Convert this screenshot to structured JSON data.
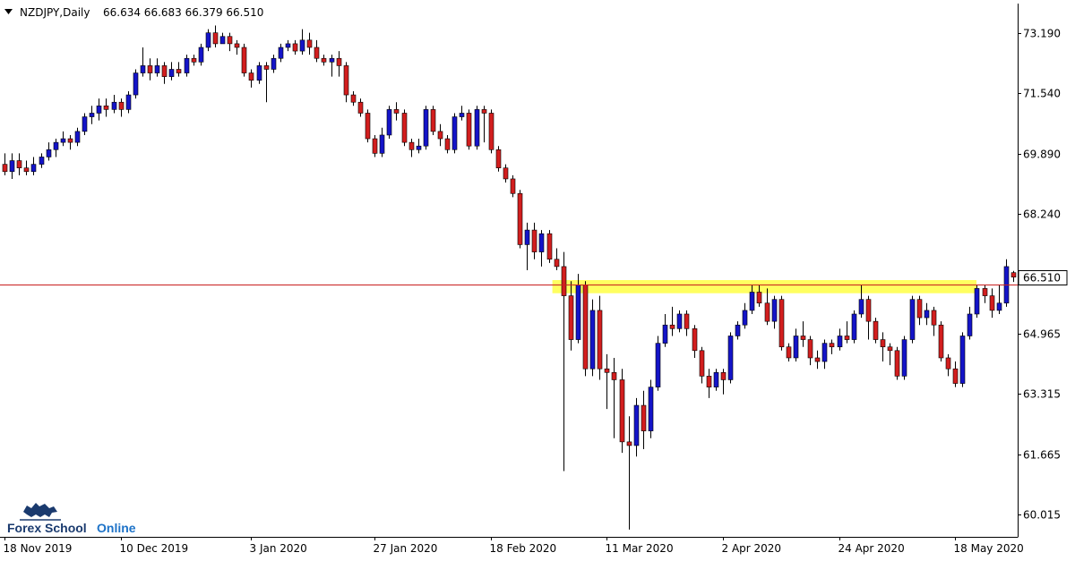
{
  "header": {
    "symbol": "NZDJPY,Daily",
    "ohlc": "66.634 66.683 66.379 66.510"
  },
  "logo": {
    "part1": "Forex School",
    "part2": "Online"
  },
  "colors": {
    "bull": "#1414c8",
    "bear": "#d21e1e",
    "zone": "#ffff44",
    "priceLine": "#c81e1e",
    "axis": "#000000"
  },
  "chart_data": {
    "type": "candlestick",
    "title": "NZDJPY,Daily",
    "ylim": [
      59.4,
      74.0
    ],
    "y_ticks": [
      "73.190",
      "71.540",
      "69.890",
      "68.240",
      "66.510",
      "64.965",
      "63.315",
      "61.665",
      "60.015"
    ],
    "y_tick_values": [
      73.19,
      71.54,
      69.89,
      68.24,
      66.51,
      64.965,
      63.315,
      61.665,
      60.015
    ],
    "x_labels": [
      {
        "label": "18 Nov 2019",
        "index": 0
      },
      {
        "label": "10 Dec 2019",
        "index": 16
      },
      {
        "label": "3 Jan 2020",
        "index": 34
      },
      {
        "label": "27 Jan 2020",
        "index": 51
      },
      {
        "label": "18 Feb 2020",
        "index": 67
      },
      {
        "label": "11 Mar 2020",
        "index": 83
      },
      {
        "label": "2 Apr 2020",
        "index": 99
      },
      {
        "label": "24 Apr 2020",
        "index": 115
      },
      {
        "label": "18 May 2020",
        "index": 131
      }
    ],
    "current_price": "66.510",
    "current_price_value": 66.51,
    "price_line_value": 66.3,
    "zone": {
      "low": 66.07,
      "high": 66.43,
      "start_index": 76
    },
    "candles": [
      [
        69.6,
        69.4,
        69.9,
        69.3
      ],
      [
        69.4,
        69.7,
        69.9,
        69.2
      ],
      [
        69.7,
        69.5,
        69.9,
        69.3
      ],
      [
        69.5,
        69.4,
        69.7,
        69.3
      ],
      [
        69.4,
        69.6,
        69.8,
        69.3
      ],
      [
        69.6,
        69.8,
        69.9,
        69.5
      ],
      [
        69.8,
        70.0,
        70.2,
        69.7
      ],
      [
        70.0,
        70.2,
        70.3,
        69.8
      ],
      [
        70.2,
        70.3,
        70.5,
        70.1
      ],
      [
        70.3,
        70.2,
        70.4,
        70.0
      ],
      [
        70.2,
        70.5,
        70.6,
        70.1
      ],
      [
        70.5,
        70.9,
        71.0,
        70.4
      ],
      [
        70.9,
        71.0,
        71.2,
        70.7
      ],
      [
        71.0,
        71.2,
        71.4,
        70.8
      ],
      [
        71.2,
        71.1,
        71.4,
        70.9
      ],
      [
        71.1,
        71.3,
        71.5,
        71.0
      ],
      [
        71.3,
        71.1,
        71.4,
        70.9
      ],
      [
        71.1,
        71.5,
        71.6,
        71.0
      ],
      [
        71.5,
        72.1,
        72.2,
        71.4
      ],
      [
        72.1,
        72.3,
        72.8,
        72.0
      ],
      [
        72.3,
        72.1,
        72.5,
        71.9
      ],
      [
        72.1,
        72.3,
        72.5,
        72.0
      ],
      [
        72.3,
        72.0,
        72.4,
        71.8
      ],
      [
        72.0,
        72.2,
        72.4,
        71.9
      ],
      [
        72.2,
        72.1,
        72.4,
        72.0
      ],
      [
        72.1,
        72.5,
        72.6,
        72.0
      ],
      [
        72.5,
        72.4,
        72.6,
        72.3
      ],
      [
        72.4,
        72.8,
        72.9,
        72.3
      ],
      [
        72.8,
        73.2,
        73.3,
        72.7
      ],
      [
        73.2,
        72.9,
        73.4,
        72.8
      ],
      [
        72.9,
        73.1,
        73.2,
        72.9
      ],
      [
        73.1,
        72.9,
        73.2,
        72.7
      ],
      [
        72.9,
        72.8,
        73.0,
        72.6
      ],
      [
        72.8,
        72.1,
        72.9,
        72.0
      ],
      [
        72.1,
        71.9,
        72.2,
        71.7
      ],
      [
        71.9,
        72.3,
        72.4,
        71.8
      ],
      [
        72.3,
        72.2,
        72.4,
        71.3
      ],
      [
        72.2,
        72.5,
        72.6,
        72.1
      ],
      [
        72.5,
        72.8,
        72.9,
        72.4
      ],
      [
        72.8,
        72.9,
        73.0,
        72.7
      ],
      [
        72.9,
        72.7,
        73.0,
        72.6
      ],
      [
        72.7,
        73.0,
        73.3,
        72.6
      ],
      [
        73.0,
        72.8,
        73.2,
        72.6
      ],
      [
        72.8,
        72.5,
        73.0,
        72.4
      ],
      [
        72.5,
        72.4,
        72.6,
        72.3
      ],
      [
        72.4,
        72.5,
        72.6,
        72.0
      ],
      [
        72.5,
        72.3,
        72.7,
        72.0
      ],
      [
        72.3,
        71.5,
        72.4,
        71.3
      ],
      [
        71.5,
        71.3,
        71.6,
        71.2
      ],
      [
        71.3,
        71.0,
        71.4,
        70.9
      ],
      [
        71.0,
        70.3,
        71.1,
        70.2
      ],
      [
        70.3,
        69.9,
        70.4,
        69.8
      ],
      [
        69.9,
        70.4,
        70.6,
        69.8
      ],
      [
        70.4,
        71.1,
        71.2,
        70.3
      ],
      [
        71.1,
        71.0,
        71.3,
        70.8
      ],
      [
        71.0,
        70.2,
        71.1,
        70.1
      ],
      [
        70.2,
        70.0,
        70.3,
        69.8
      ],
      [
        70.0,
        70.1,
        70.3,
        69.9
      ],
      [
        70.1,
        71.1,
        71.2,
        70.0
      ],
      [
        71.1,
        70.5,
        71.2,
        70.4
      ],
      [
        70.5,
        70.3,
        70.7,
        70.1
      ],
      [
        70.3,
        70.0,
        70.4,
        69.9
      ],
      [
        70.0,
        70.9,
        71.0,
        69.9
      ],
      [
        70.9,
        71.0,
        71.2,
        70.8
      ],
      [
        71.0,
        70.1,
        71.1,
        70.0
      ],
      [
        70.1,
        71.1,
        71.2,
        70.0
      ],
      [
        71.1,
        71.0,
        71.2,
        70.2
      ],
      [
        71.0,
        70.0,
        71.1,
        69.9
      ],
      [
        70.0,
        69.5,
        70.1,
        69.4
      ],
      [
        69.5,
        69.2,
        69.6,
        69.1
      ],
      [
        69.2,
        68.8,
        69.3,
        68.7
      ],
      [
        68.8,
        67.4,
        68.9,
        67.3
      ],
      [
        67.4,
        67.8,
        68.0,
        66.7
      ],
      [
        67.8,
        67.2,
        68.0,
        67.0
      ],
      [
        67.2,
        67.7,
        67.8,
        66.8
      ],
      [
        67.7,
        67.0,
        67.8,
        66.9
      ],
      [
        67.0,
        66.8,
        67.3,
        66.7
      ],
      [
        66.8,
        66.0,
        67.2,
        61.2
      ],
      [
        66.0,
        64.8,
        66.4,
        64.5
      ],
      [
        64.8,
        66.3,
        66.6,
        64.7
      ],
      [
        66.3,
        64.0,
        66.4,
        63.8
      ],
      [
        64.0,
        65.6,
        65.9,
        63.8
      ],
      [
        65.6,
        64.0,
        66.0,
        63.7
      ],
      [
        64.0,
        63.9,
        64.4,
        62.9
      ],
      [
        63.9,
        63.7,
        64.3,
        62.1
      ],
      [
        63.7,
        62.0,
        64.0,
        61.7
      ],
      [
        62.0,
        61.9,
        62.7,
        59.6
      ],
      [
        61.9,
        63.0,
        63.2,
        61.6
      ],
      [
        63.0,
        62.3,
        63.4,
        61.8
      ],
      [
        62.3,
        63.5,
        63.7,
        62.1
      ],
      [
        63.5,
        64.7,
        64.9,
        63.4
      ],
      [
        64.7,
        65.2,
        65.5,
        64.6
      ],
      [
        65.2,
        65.1,
        65.7,
        64.9
      ],
      [
        65.1,
        65.5,
        65.6,
        65.0
      ],
      [
        65.5,
        65.1,
        65.6,
        64.9
      ],
      [
        65.1,
        64.5,
        65.2,
        64.3
      ],
      [
        64.5,
        63.8,
        64.6,
        63.6
      ],
      [
        63.8,
        63.5,
        64.0,
        63.2
      ],
      [
        63.5,
        63.9,
        64.0,
        63.4
      ],
      [
        63.9,
        63.7,
        64.0,
        63.3
      ],
      [
        63.7,
        64.9,
        65.0,
        63.6
      ],
      [
        64.9,
        65.2,
        65.3,
        64.8
      ],
      [
        65.2,
        65.6,
        65.8,
        65.1
      ],
      [
        65.6,
        66.1,
        66.3,
        65.5
      ],
      [
        66.1,
        65.8,
        66.3,
        65.7
      ],
      [
        65.8,
        65.3,
        66.2,
        65.2
      ],
      [
        65.3,
        65.9,
        66.0,
        65.1
      ],
      [
        65.9,
        64.6,
        66.0,
        64.5
      ],
      [
        64.6,
        64.3,
        64.7,
        64.2
      ],
      [
        64.3,
        64.9,
        65.1,
        64.2
      ],
      [
        64.9,
        64.8,
        65.3,
        64.6
      ],
      [
        64.8,
        64.3,
        64.9,
        64.1
      ],
      [
        64.3,
        64.2,
        64.5,
        64.0
      ],
      [
        64.2,
        64.7,
        64.8,
        64.0
      ],
      [
        64.7,
        64.6,
        64.8,
        64.4
      ],
      [
        64.6,
        64.9,
        65.1,
        64.5
      ],
      [
        64.9,
        64.8,
        65.3,
        64.7
      ],
      [
        64.8,
        65.5,
        65.6,
        64.7
      ],
      [
        65.5,
        65.9,
        66.3,
        65.4
      ],
      [
        65.9,
        65.3,
        66.0,
        64.8
      ],
      [
        65.3,
        64.8,
        65.4,
        64.7
      ],
      [
        64.8,
        64.6,
        65.0,
        64.2
      ],
      [
        64.6,
        64.5,
        64.7,
        64.1
      ],
      [
        64.5,
        63.8,
        64.6,
        63.7
      ],
      [
        63.8,
        64.8,
        64.9,
        63.7
      ],
      [
        64.8,
        65.9,
        66.0,
        64.7
      ],
      [
        65.9,
        65.4,
        66.0,
        65.2
      ],
      [
        65.4,
        65.6,
        65.8,
        65.2
      ],
      [
        65.6,
        65.2,
        65.7,
        64.9
      ],
      [
        65.2,
        64.3,
        65.3,
        64.2
      ],
      [
        64.3,
        64.0,
        64.4,
        63.8
      ],
      [
        64.0,
        63.6,
        64.2,
        63.5
      ],
      [
        63.6,
        64.9,
        65.0,
        63.5
      ],
      [
        64.9,
        65.5,
        65.7,
        64.8
      ],
      [
        65.5,
        66.2,
        66.3,
        65.4
      ],
      [
        66.2,
        66.0,
        66.3,
        65.8
      ],
      [
        66.0,
        65.6,
        66.2,
        65.4
      ],
      [
        65.6,
        65.8,
        66.3,
        65.5
      ],
      [
        65.8,
        66.8,
        67.0,
        65.7
      ],
      [
        66.634,
        66.51,
        66.683,
        66.379
      ]
    ]
  }
}
